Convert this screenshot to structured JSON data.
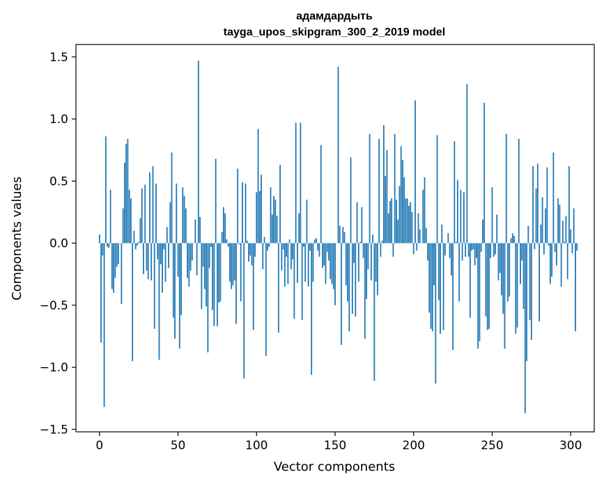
{
  "chart_data": {
    "type": "bar",
    "title": "адамдардыть",
    "subtitle": "tayga_upos_skipgram_300_2_2019 model",
    "xlabel": "Vector components",
    "ylabel": "Components values",
    "xlim": [
      -15,
      315
    ],
    "ylim": [
      -1.52,
      1.6
    ],
    "xticks": [
      0,
      50,
      100,
      150,
      200,
      250,
      300
    ],
    "xtick_labels": [
      "0",
      "50",
      "100",
      "150",
      "200",
      "250",
      "300"
    ],
    "yticks": [
      -1.5,
      -1.0,
      -0.5,
      0.0,
      0.5,
      1.0,
      1.5
    ],
    "ytick_labels": [
      "−1.5",
      "−1.0",
      "−0.5",
      "0.0",
      "0.5",
      "1.0",
      "1.5"
    ],
    "bar_color": "#1f77b4",
    "grid": false,
    "values": [
      0.07,
      -0.8,
      -0.1,
      -1.32,
      0.86,
      -0.03,
      -0.04,
      0.43,
      -0.37,
      -0.4,
      -0.28,
      -0.19,
      -0.17,
      0.0,
      -0.49,
      0.28,
      0.65,
      0.8,
      0.84,
      0.43,
      0.36,
      -0.95,
      0.1,
      -0.05,
      -0.02,
      0.01,
      0.2,
      0.44,
      -0.25,
      0.47,
      -0.22,
      -0.29,
      0.57,
      -0.3,
      0.62,
      -0.69,
      0.48,
      -0.13,
      -0.94,
      -0.17,
      -0.4,
      -0.05,
      -0.31,
      0.13,
      -0.2,
      0.33,
      0.73,
      -0.6,
      -0.77,
      0.48,
      -0.27,
      -0.85,
      -0.58,
      0.45,
      0.38,
      0.28,
      -0.28,
      -0.35,
      -0.22,
      -0.14,
      0.0,
      0.19,
      -0.26,
      1.47,
      0.21,
      -0.53,
      -0.19,
      -0.37,
      -0.51,
      -0.88,
      -0.2,
      -0.03,
      -0.54,
      -0.67,
      0.68,
      -0.67,
      -0.48,
      -0.47,
      0.09,
      0.29,
      0.24,
      0.03,
      -0.03,
      -0.31,
      -0.37,
      -0.34,
      -0.3,
      -0.65,
      0.6,
      -0.01,
      -0.47,
      0.49,
      -1.09,
      0.48,
      0.02,
      -0.15,
      -0.1,
      -0.18,
      -0.7,
      -0.11,
      0.41,
      0.92,
      0.42,
      0.55,
      -0.21,
      0.05,
      -0.91,
      -0.06,
      -0.03,
      0.45,
      0.23,
      0.38,
      0.35,
      0.22,
      -0.72,
      0.63,
      -0.22,
      -0.05,
      -0.35,
      -0.11,
      -0.33,
      0.03,
      -0.21,
      -0.13,
      -0.61,
      0.97,
      -0.32,
      0.24,
      0.97,
      -0.62,
      -0.03,
      -0.31,
      0.35,
      -0.35,
      -0.06,
      -1.06,
      -0.31,
      0.03,
      0.04,
      -0.06,
      -0.11,
      0.79,
      -0.2,
      -0.18,
      -0.33,
      -0.07,
      -0.14,
      -0.29,
      -0.33,
      -0.37,
      -0.5,
      0.0,
      1.42,
      0.14,
      -0.82,
      0.13,
      0.09,
      -0.34,
      -0.47,
      -0.71,
      0.69,
      -0.57,
      -0.16,
      -0.59,
      0.33,
      -0.31,
      0.01,
      0.29,
      -0.12,
      -0.77,
      -0.45,
      -0.21,
      0.88,
      -0.3,
      0.07,
      -1.11,
      -0.31,
      -0.42,
      0.84,
      -0.11,
      0.02,
      0.95,
      0.54,
      0.75,
      0.24,
      0.34,
      0.36,
      -0.11,
      0.88,
      0.35,
      0.19,
      0.46,
      0.78,
      0.67,
      0.53,
      0.36,
      0.36,
      0.3,
      0.33,
      0.25,
      -0.09,
      1.15,
      -0.06,
      0.24,
      0.11,
      0.0,
      0.43,
      0.53,
      0.12,
      -0.14,
      -0.56,
      -0.69,
      -0.71,
      -0.34,
      -1.13,
      0.87,
      -0.46,
      -0.73,
      0.15,
      -0.7,
      -0.1,
      0.0,
      0.08,
      -0.12,
      -0.26,
      -0.86,
      0.82,
      0.01,
      0.51,
      -0.47,
      0.43,
      -0.14,
      0.41,
      -0.11,
      1.28,
      -0.11,
      -0.6,
      -0.06,
      -0.05,
      -0.18,
      -0.12,
      -0.85,
      -0.79,
      -0.07,
      0.19,
      1.13,
      -0.59,
      -0.7,
      -0.69,
      -0.12,
      0.45,
      -0.11,
      -0.09,
      0.23,
      -0.3,
      -0.24,
      -0.42,
      -0.57,
      -0.85,
      0.88,
      -0.47,
      -0.43,
      0.04,
      0.08,
      0.06,
      -0.73,
      -0.68,
      0.84,
      -0.33,
      -0.14,
      -0.53,
      -1.37,
      -0.95,
      0.14,
      -0.62,
      -0.78,
      0.62,
      -0.05,
      0.44,
      0.64,
      -0.63,
      0.15,
      0.37,
      -0.09,
      0.28,
      0.61,
      -0.02,
      -0.33,
      -0.27,
      0.73,
      -0.07,
      -0.18,
      0.36,
      0.31,
      -0.35,
      0.18,
      0.01,
      0.22,
      -0.29,
      0.62,
      0.11,
      -0.08,
      0.28,
      -0.71,
      -0.06
    ]
  }
}
